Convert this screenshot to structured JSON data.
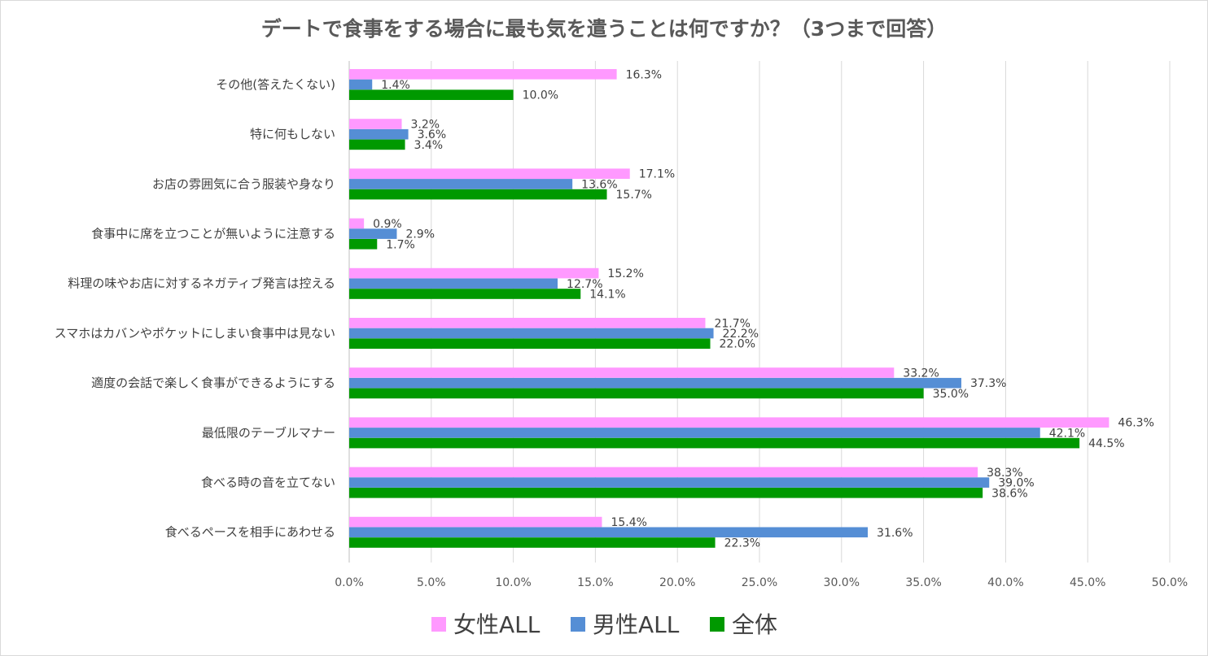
{
  "chart_data": {
    "type": "bar",
    "orientation": "horizontal",
    "title": "デートで食事をする場合に最も気を遣うことは何ですか？（3つまで回答）",
    "categories": [
      "その他(答えたくない)",
      "特に何もしない",
      "お店の雰囲気に合う服装や身なり",
      "食事中に席を立つことが無いように注意する",
      "料理の味やお店に対するネガティブ発言は控える",
      "スマホはカバンやポケットにしまい食事中は見ない",
      "適度の会話で楽しく食事ができるようにする",
      "最低限のテーブルマナー",
      "食べる時の音を立てない",
      "食べるペースを相手にあわせる"
    ],
    "series": [
      {
        "name": "女性ALL",
        "color": "#ff99ff",
        "values": [
          16.3,
          3.2,
          17.1,
          0.9,
          15.2,
          21.7,
          33.2,
          46.3,
          38.3,
          15.4
        ]
      },
      {
        "name": "男性ALL",
        "color": "#558ed5",
        "values": [
          1.4,
          3.6,
          13.6,
          2.9,
          12.7,
          22.2,
          37.3,
          42.1,
          39.0,
          31.6
        ]
      },
      {
        "name": "全体",
        "color": "#009900",
        "values": [
          10.0,
          3.4,
          15.7,
          1.7,
          14.1,
          22.0,
          35.0,
          44.5,
          38.6,
          22.3
        ]
      }
    ],
    "xlim": [
      0,
      50
    ],
    "xticks": [
      "0.0%",
      "5.0%",
      "10.0%",
      "15.0%",
      "20.0%",
      "25.0%",
      "30.0%",
      "35.0%",
      "40.0%",
      "45.0%",
      "50.0%"
    ],
    "value_suffix": "%",
    "grid": "vertical",
    "legend_position": "bottom"
  }
}
